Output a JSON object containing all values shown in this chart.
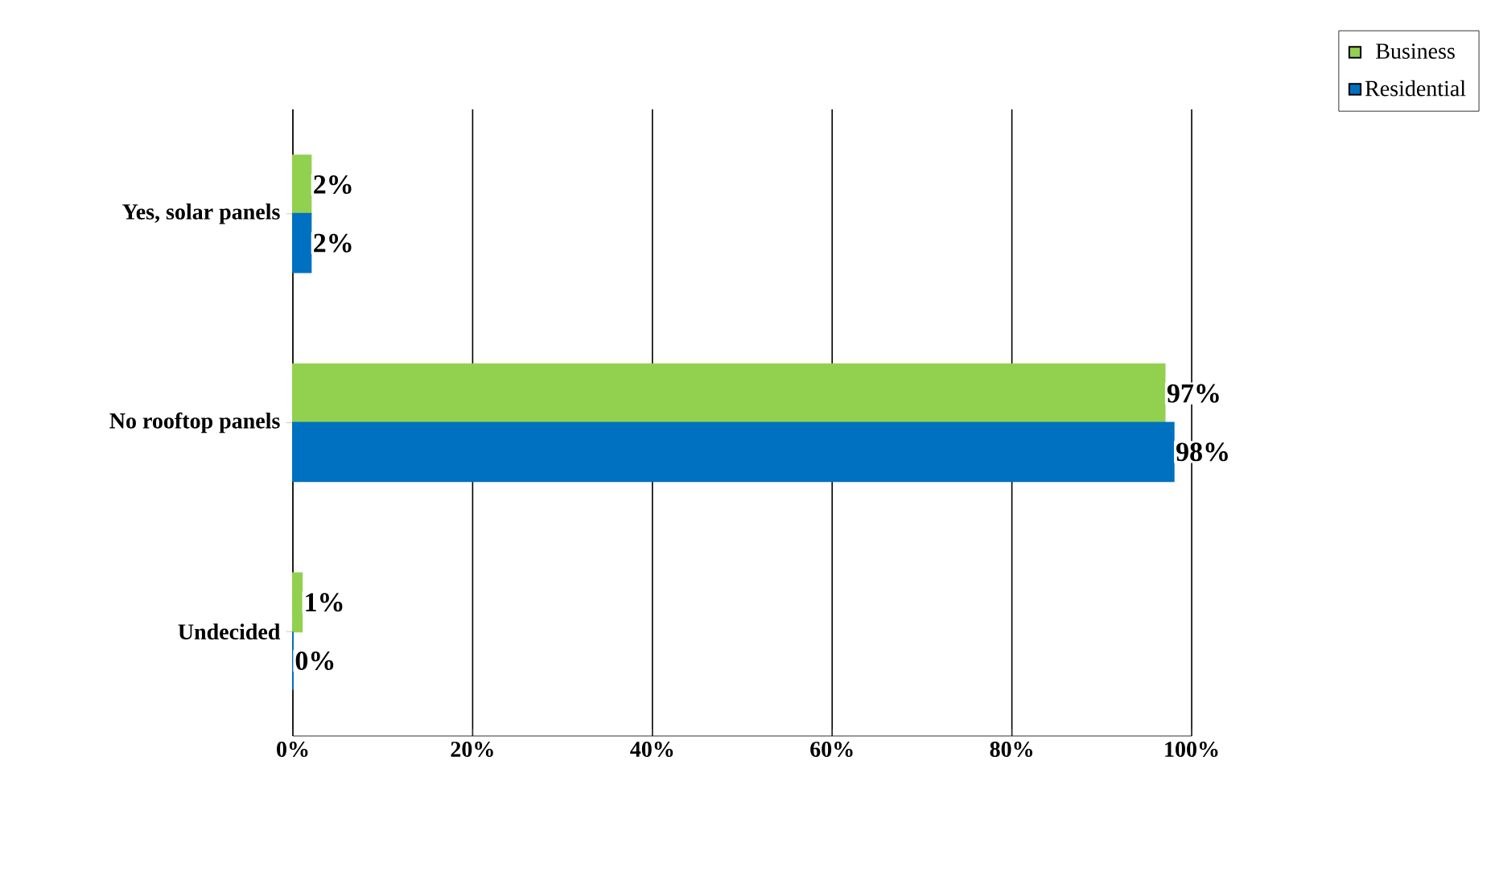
{
  "chart_data": {
    "type": "bar",
    "orientation": "horizontal",
    "categories": [
      "Yes, solar panels",
      "No rooftop panels",
      "Undecided"
    ],
    "series": [
      {
        "name": "Business",
        "color": "#92d050",
        "values": [
          2,
          97,
          1
        ],
        "value_labels": [
          "2%",
          "97%",
          "1%"
        ]
      },
      {
        "name": "Residential",
        "color": "#0070c0",
        "values": [
          2,
          98,
          0
        ],
        "value_labels": [
          "2%",
          "98%",
          "0%"
        ]
      }
    ],
    "xlim": [
      0,
      100
    ],
    "xticks": [
      {
        "value": 0,
        "label": "0%"
      },
      {
        "value": 20,
        "label": "20%"
      },
      {
        "value": 40,
        "label": "40%"
      },
      {
        "value": 60,
        "label": "60%"
      },
      {
        "value": 80,
        "label": "80%"
      },
      {
        "value": 100,
        "label": "100%"
      }
    ],
    "grid": "x",
    "legend": "top right"
  }
}
